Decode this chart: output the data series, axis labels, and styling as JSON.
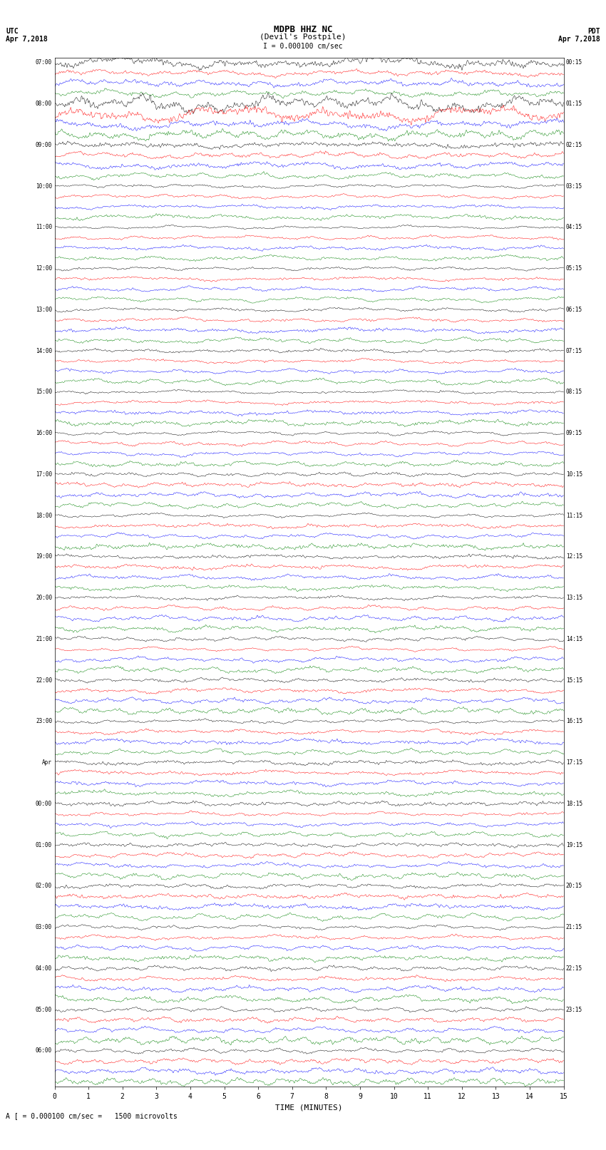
{
  "title_line1": "MDPB HHZ NC",
  "title_line2": "(Devil's Postpile)",
  "scale_text": "I = 0.000100 cm/sec",
  "utc_label": "UTC",
  "utc_date": "Apr 7,2018",
  "pdt_label": "PDT",
  "pdt_date": "Apr 7,2018",
  "xlabel": "TIME (MINUTES)",
  "footer_note": "A [ = 0.000100 cm/sec =   1500 microvolts",
  "trace_colors_cycle": [
    "black",
    "red",
    "blue",
    "green"
  ],
  "left_times_utc": [
    "07:00",
    "",
    "",
    "",
    "08:00",
    "",
    "",
    "",
    "09:00",
    "",
    "",
    "",
    "10:00",
    "",
    "",
    "",
    "11:00",
    "",
    "",
    "",
    "12:00",
    "",
    "",
    "",
    "13:00",
    "",
    "",
    "",
    "14:00",
    "",
    "",
    "",
    "15:00",
    "",
    "",
    "",
    "16:00",
    "",
    "",
    "",
    "17:00",
    "",
    "",
    "",
    "18:00",
    "",
    "",
    "",
    "19:00",
    "",
    "",
    "",
    "20:00",
    "",
    "",
    "",
    "21:00",
    "",
    "",
    "",
    "22:00",
    "",
    "",
    "",
    "23:00",
    "",
    "",
    "",
    "Apr",
    "",
    "",
    "",
    "00:00",
    "",
    "",
    "",
    "01:00",
    "",
    "",
    "",
    "02:00",
    "",
    "",
    "",
    "03:00",
    "",
    "",
    "",
    "04:00",
    "",
    "",
    "",
    "05:00",
    "",
    "",
    "",
    "06:00",
    "",
    "",
    ""
  ],
  "right_times_pdt": [
    "00:15",
    "",
    "",
    "",
    "01:15",
    "",
    "",
    "",
    "02:15",
    "",
    "",
    "",
    "03:15",
    "",
    "",
    "",
    "04:15",
    "",
    "",
    "",
    "05:15",
    "",
    "",
    "",
    "06:15",
    "",
    "",
    "",
    "07:15",
    "",
    "",
    "",
    "08:15",
    "",
    "",
    "",
    "09:15",
    "",
    "",
    "",
    "10:15",
    "",
    "",
    "",
    "11:15",
    "",
    "",
    "",
    "12:15",
    "",
    "",
    "",
    "13:15",
    "",
    "",
    "",
    "14:15",
    "",
    "",
    "",
    "15:15",
    "",
    "",
    "",
    "16:15",
    "",
    "",
    "",
    "17:15",
    "",
    "",
    "",
    "18:15",
    "",
    "",
    "",
    "19:15",
    "",
    "",
    "",
    "20:15",
    "",
    "",
    "",
    "21:15",
    "",
    "",
    "",
    "22:15",
    "",
    "",
    "",
    "23:15",
    "",
    "",
    "",
    "",
    "",
    "",
    ""
  ],
  "num_traces": 100,
  "minutes": 15,
  "background_color": "white",
  "fig_width": 8.5,
  "fig_height": 16.13,
  "dpi": 100
}
